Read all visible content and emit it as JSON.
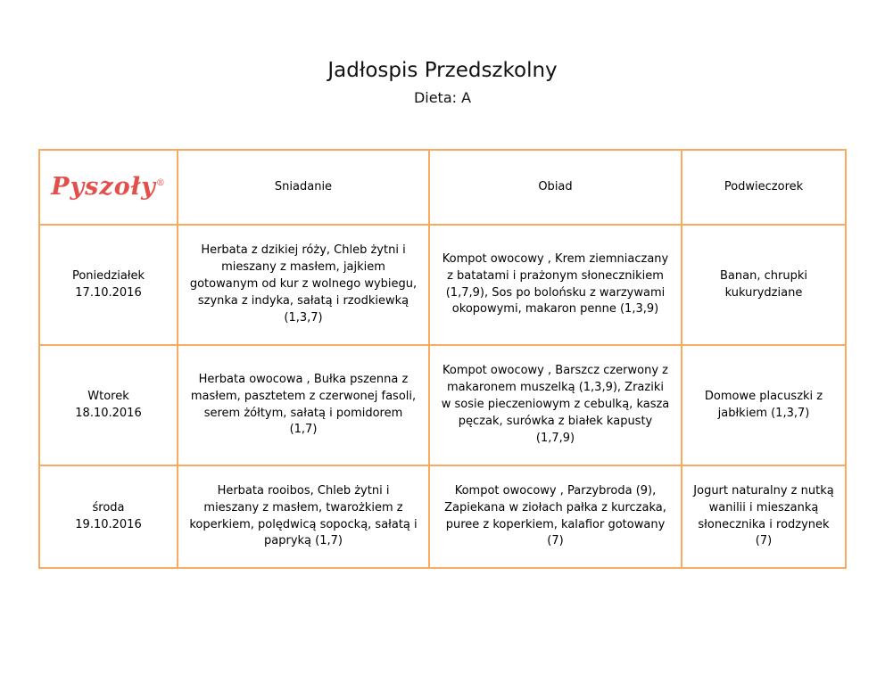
{
  "page": {
    "title": "Jadłospis Przedszkolny",
    "subtitle": "Dieta: A"
  },
  "colors": {
    "table_border": "#f8aa60",
    "logo": "#e2504c"
  },
  "table": {
    "logo_text": "Pyszoły",
    "logo_reg": "®",
    "headers": {
      "breakfast": "Sniadanie",
      "dinner": "Obiad",
      "snack": "Podwieczorek"
    },
    "rows": [
      {
        "day": "Poniedziałek",
        "date": "17.10.2016",
        "breakfast": "Herbata z dzikiej róży, Chleb żytni i mieszany z masłem, jajkiem gotowanym od kur z wolnego wybiegu, szynka z indyka, sałatą i rzodkiewką (1,3,7)",
        "dinner": "Kompot owocowy , Krem ziemniaczany z batatami i prażonym słonecznikiem (1,7,9), Sos po bolońsku z warzywami okopowymi, makaron penne (1,3,9)",
        "snack": "Banan, chrupki kukurydziane"
      },
      {
        "day": "Wtorek",
        "date": "18.10.2016",
        "breakfast": "Herbata owocowa , Bułka pszenna z masłem, pasztetem z czerwonej fasoli, serem żółtym, sałatą i pomidorem (1,7)",
        "dinner": "Kompot owocowy , Barszcz czerwony z makaronem muszelką (1,3,9), Zraziki w sosie pieczeniowym z cebulką, kasza pęczak, surówka z białek kapusty (1,7,9)",
        "snack": "Domowe placuszki z jabłkiem (1,3,7)"
      },
      {
        "day": "środa",
        "date": "19.10.2016",
        "breakfast": "Herbata rooibos, Chleb żytni i mieszany z masłem, twarożkiem z koperkiem, polędwicą sopocką, sałatą i papryką (1,7)",
        "dinner": "Kompot owocowy , Parzybroda (9), Zapiekana w ziołach pałka z kurczaka, puree z koperkiem, kalafior gotowany (7)",
        "snack": "Jogurt naturalny z nutką wanilii i mieszanką słonecznika i rodzynek (7)"
      }
    ]
  }
}
